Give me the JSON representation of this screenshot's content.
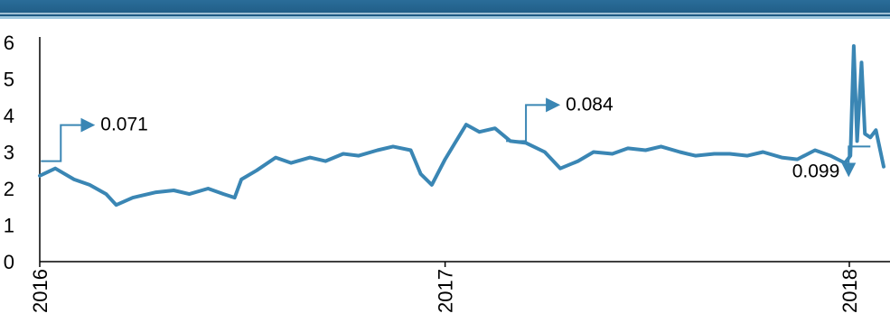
{
  "chart_data": {
    "type": "line",
    "title": "",
    "xlabel": "",
    "ylabel": "",
    "ylim": [
      0,
      6
    ],
    "yticks": [
      "0",
      "1",
      "2",
      "3",
      "4",
      "5",
      "6"
    ],
    "xticks": [
      "2016",
      "2017",
      "2018"
    ],
    "x_range": [
      "2016-01",
      "2018-02"
    ],
    "series": [
      {
        "color": "#3a86b4",
        "points": [
          [
            "2016-01",
            2.35
          ],
          [
            "2016-01-15",
            2.55
          ],
          [
            "2016-02",
            2.25
          ],
          [
            "2016-02-15",
            2.1
          ],
          [
            "2016-03",
            1.85
          ],
          [
            "2016-03-10",
            1.55
          ],
          [
            "2016-03-25",
            1.75
          ],
          [
            "2016-04",
            1.8
          ],
          [
            "2016-04-15",
            1.9
          ],
          [
            "2016-05",
            1.95
          ],
          [
            "2016-05-15",
            1.85
          ],
          [
            "2016-06",
            2.0
          ],
          [
            "2016-06-15",
            1.85
          ],
          [
            "2016-06-25",
            1.75
          ],
          [
            "2016-07",
            2.25
          ],
          [
            "2016-07-15",
            2.5
          ],
          [
            "2016-08",
            2.85
          ],
          [
            "2016-08-15",
            2.7
          ],
          [
            "2016-09",
            2.85
          ],
          [
            "2016-09-15",
            2.75
          ],
          [
            "2016-10",
            2.95
          ],
          [
            "2016-10-15",
            2.9
          ],
          [
            "2016-11",
            3.05
          ],
          [
            "2016-11-15",
            3.15
          ],
          [
            "2016-12",
            3.05
          ],
          [
            "2016-12-10",
            2.4
          ],
          [
            "2016-12-20",
            2.1
          ],
          [
            "2017-01",
            2.8
          ],
          [
            "2017-01-10",
            3.25
          ],
          [
            "2017-01-20",
            3.75
          ],
          [
            "2017-02",
            3.55
          ],
          [
            "2017-02-15",
            3.65
          ],
          [
            "2017-03",
            3.3
          ],
          [
            "2017-03-15",
            3.25
          ],
          [
            "2017-04",
            3.0
          ],
          [
            "2017-04-15",
            2.55
          ],
          [
            "2017-05",
            2.75
          ],
          [
            "2017-05-15",
            3.0
          ],
          [
            "2017-06",
            2.95
          ],
          [
            "2017-06-15",
            3.1
          ],
          [
            "2017-07",
            3.05
          ],
          [
            "2017-07-15",
            3.15
          ],
          [
            "2017-08",
            3.0
          ],
          [
            "2017-08-15",
            2.9
          ],
          [
            "2017-09",
            2.95
          ],
          [
            "2017-09-15",
            2.95
          ],
          [
            "2017-10",
            2.9
          ],
          [
            "2017-10-15",
            3.0
          ],
          [
            "2017-11",
            2.85
          ],
          [
            "2017-11-15",
            2.8
          ],
          [
            "2017-12",
            3.05
          ],
          [
            "2017-12-15",
            2.9
          ],
          [
            "2017-12-28",
            2.7
          ],
          [
            "2018-01-02",
            2.9
          ],
          [
            "2018-01-05",
            5.9
          ],
          [
            "2018-01-08",
            3.3
          ],
          [
            "2018-01-12",
            5.45
          ],
          [
            "2018-01-15",
            3.5
          ],
          [
            "2018-01-20",
            3.4
          ],
          [
            "2018-01-25",
            3.6
          ],
          [
            "2018-02",
            2.6
          ]
        ]
      }
    ],
    "annotations": [
      {
        "text": "0.071",
        "at": [
          "2016-01-20",
          2.75
        ],
        "arrow": "up-right"
      },
      {
        "text": "0.084",
        "at": [
          "2017-03-15",
          3.3
        ],
        "arrow": "up-right"
      },
      {
        "text": "0.099",
        "at": [
          "2018-01-20",
          3.15
        ],
        "arrow": "down-left"
      }
    ],
    "grid": false,
    "legend": "none"
  }
}
